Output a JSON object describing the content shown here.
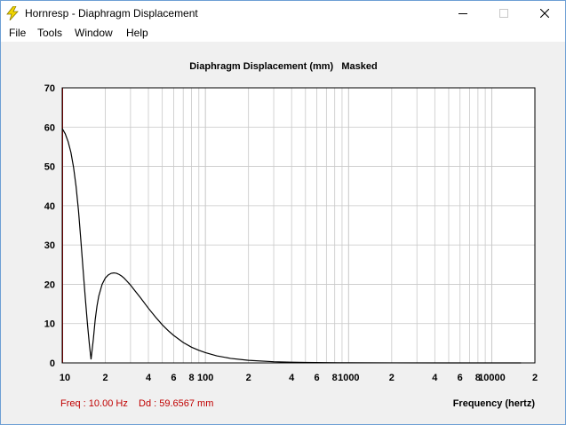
{
  "window": {
    "title": "Hornresp - Diaphragm Displacement",
    "icon": "lightning-bolt-icon"
  },
  "menu": [
    {
      "label": "File"
    },
    {
      "label": "Tools"
    },
    {
      "label": "Window"
    },
    {
      "label": "Help"
    }
  ],
  "controls": {
    "minimize_icon": "minimize-icon",
    "maximize_icon": "maximize-icon",
    "close_icon": "close-icon"
  },
  "status": {
    "freq_text": "Freq : 10.00 Hz",
    "dd_text": "Dd : 59.6567 mm"
  },
  "colors": {
    "cursor_line": "#c00000",
    "curve": "#000000",
    "grid": "#c8c8c8",
    "status_text": "#c00000",
    "plot_background": "#ffffff",
    "panel_background": "#f0f0f0"
  },
  "chart_data": {
    "type": "line",
    "title": "Diaphragm Displacement (mm)   Masked",
    "xlabel": "Frequency (hertz)",
    "ylabel": "",
    "x_scale": "log",
    "xlim": [
      10,
      20000
    ],
    "ylim": [
      0,
      70
    ],
    "y_ticks": [
      0,
      10,
      20,
      30,
      40,
      50,
      60,
      70
    ],
    "x_tick_labels": [
      {
        "x": 10,
        "label": "10"
      },
      {
        "x": 20,
        "label": "2"
      },
      {
        "x": 40,
        "label": "4"
      },
      {
        "x": 60,
        "label": "6"
      },
      {
        "x": 80,
        "label": "8"
      },
      {
        "x": 100,
        "label": "100"
      },
      {
        "x": 200,
        "label": "2"
      },
      {
        "x": 400,
        "label": "4"
      },
      {
        "x": 600,
        "label": "6"
      },
      {
        "x": 800,
        "label": "8"
      },
      {
        "x": 1000,
        "label": "1000"
      },
      {
        "x": 2000,
        "label": "2"
      },
      {
        "x": 4000,
        "label": "4"
      },
      {
        "x": 6000,
        "label": "6"
      },
      {
        "x": 8000,
        "label": "8"
      },
      {
        "x": 10000,
        "label": "10000"
      },
      {
        "x": 20000,
        "label": "2"
      }
    ],
    "grid": true,
    "cursor_x": 10,
    "series": [
      {
        "x": [
          10,
          10.5,
          11,
          11.5,
          12,
          12.5,
          13,
          13.5,
          14,
          14.5,
          15,
          15.5,
          15.9,
          16.5,
          17,
          17.5,
          18,
          19,
          20,
          21,
          22,
          23,
          24,
          25,
          26,
          27,
          28,
          30,
          32,
          35,
          40,
          45,
          50,
          55,
          60,
          70,
          80,
          90,
          100,
          120,
          150,
          200,
          300,
          400,
          500,
          700,
          1000,
          2000,
          5000,
          10000,
          16000
        ],
        "y": [
          59.66,
          58.3,
          56.3,
          53.6,
          49.8,
          44.9,
          38.7,
          31.2,
          23.6,
          16.5,
          10.0,
          4.5,
          0.9,
          6.0,
          11.0,
          14.5,
          17.0,
          20.0,
          21.6,
          22.4,
          22.8,
          22.9,
          22.8,
          22.5,
          22.1,
          21.6,
          21.0,
          19.8,
          18.5,
          16.7,
          13.9,
          11.6,
          9.7,
          8.2,
          7.0,
          5.2,
          4.0,
          3.2,
          2.6,
          1.8,
          1.15,
          0.65,
          0.3,
          0.17,
          0.11,
          0.06,
          0.03,
          0.01,
          0.005,
          0.002,
          0.001
        ]
      }
    ]
  }
}
